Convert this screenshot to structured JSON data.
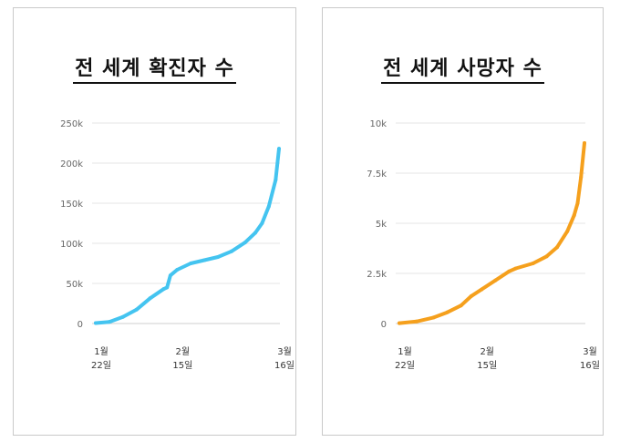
{
  "chart_data": [
    {
      "type": "line",
      "title": "전 세계 확진자 수",
      "color": "#44c4f0",
      "ylim": [
        0,
        250000
      ],
      "y_ticks": [
        {
          "value": 0,
          "label": "0"
        },
        {
          "value": 50000,
          "label": "50k"
        },
        {
          "value": 100000,
          "label": "100k"
        },
        {
          "value": 150000,
          "label": "150k"
        },
        {
          "value": 200000,
          "label": "200k"
        },
        {
          "value": 250000,
          "label": "250k"
        }
      ],
      "x_range": [
        "2020-01-22",
        "2020-03-16"
      ],
      "x_ticks": [
        {
          "date": "2020-01-22",
          "month": "1월",
          "day": "22일"
        },
        {
          "date": "2020-02-15",
          "month": "2월",
          "day": "15일"
        },
        {
          "date": "2020-03-16",
          "month": "3월",
          "day": "16일"
        }
      ],
      "series": [
        {
          "points": [
            [
              "2020-01-22",
              555
            ],
            [
              "2020-01-26",
              2100
            ],
            [
              "2020-01-30",
              8200
            ],
            [
              "2020-02-03",
              17300
            ],
            [
              "2020-02-07",
              31500
            ],
            [
              "2020-02-11",
              43000
            ],
            [
              "2020-02-12",
              45000
            ],
            [
              "2020-02-13",
              60000
            ],
            [
              "2020-02-15",
              67000
            ],
            [
              "2020-02-19",
              75000
            ],
            [
              "2020-02-23",
              79000
            ],
            [
              "2020-02-27",
              83000
            ],
            [
              "2020-03-02",
              90000
            ],
            [
              "2020-03-06",
              101000
            ],
            [
              "2020-03-09",
              113000
            ],
            [
              "2020-03-11",
              125000
            ],
            [
              "2020-03-13",
              146000
            ],
            [
              "2020-03-15",
              179000
            ],
            [
              "2020-03-16",
              218000
            ]
          ]
        }
      ]
    },
    {
      "type": "line",
      "title": "전 세계 사망자 수",
      "color": "#f5a01d",
      "ylim": [
        0,
        10000
      ],
      "y_ticks": [
        {
          "value": 0,
          "label": "0"
        },
        {
          "value": 2500,
          "label": "2.5k"
        },
        {
          "value": 5000,
          "label": "5k"
        },
        {
          "value": 7500,
          "label": "7.5k"
        },
        {
          "value": 10000,
          "label": "10k"
        }
      ],
      "x_range": [
        "2020-01-22",
        "2020-03-16"
      ],
      "x_ticks": [
        {
          "date": "2020-01-22",
          "month": "1월",
          "day": "22일"
        },
        {
          "date": "2020-02-15",
          "month": "2월",
          "day": "15일"
        },
        {
          "date": "2020-03-16",
          "month": "3월",
          "day": "16일"
        }
      ],
      "series": [
        {
          "points": [
            [
              "2020-01-22",
              17
            ],
            [
              "2020-01-27",
              100
            ],
            [
              "2020-02-01",
              300
            ],
            [
              "2020-02-05",
              560
            ],
            [
              "2020-02-09",
              900
            ],
            [
              "2020-02-12",
              1370
            ],
            [
              "2020-02-15",
              1700
            ],
            [
              "2020-02-19",
              2150
            ],
            [
              "2020-02-23",
              2600
            ],
            [
              "2020-02-25",
              2750
            ],
            [
              "2020-03-01",
              3000
            ],
            [
              "2020-03-05",
              3350
            ],
            [
              "2020-03-08",
              3800
            ],
            [
              "2020-03-11",
              4600
            ],
            [
              "2020-03-13",
              5400
            ],
            [
              "2020-03-14",
              6000
            ],
            [
              "2020-03-15",
              7300
            ],
            [
              "2020-03-16",
              9000
            ]
          ]
        }
      ]
    }
  ]
}
